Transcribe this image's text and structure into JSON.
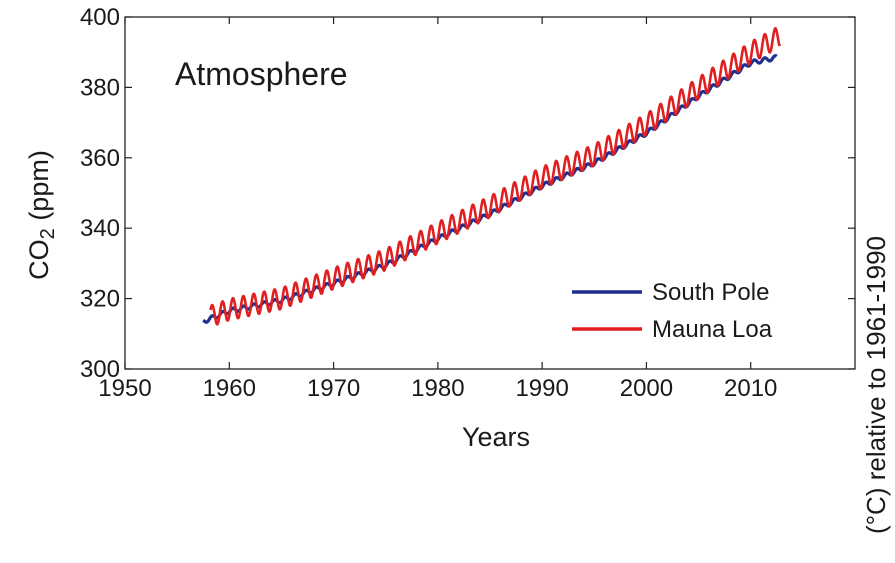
{
  "chart_data": {
    "type": "line",
    "panel_label": "Atmosphere",
    "xlabel": "Years",
    "ylabel_main": "CO",
    "ylabel_sub": "2",
    "ylabel_unit": " (ppm)",
    "xlim": [
      1950,
      2020
    ],
    "ylim": [
      300,
      400
    ],
    "x_ticks": [
      1950,
      1960,
      1970,
      1980,
      1990,
      2000,
      2010
    ],
    "y_ticks": [
      300,
      320,
      340,
      360,
      380,
      400
    ],
    "legend_position": "lower-right",
    "grid": false,
    "series": [
      {
        "name": "South Pole",
        "color": "#1f2f8f",
        "seasonal_amplitude": 0.6,
        "x": [
          1957.5,
          1960,
          1965,
          1970,
          1975,
          1980,
          1985,
          1990,
          1995,
          2000,
          2005,
          2010,
          2012.5
        ],
        "values": [
          313.5,
          316.5,
          319.5,
          324.3,
          329.5,
          337.0,
          344.0,
          352.0,
          358.5,
          367.0,
          377.5,
          387.0,
          388.5
        ]
      },
      {
        "name": "Mauna Loa",
        "color": "#e02020",
        "seasonal_amplitude": 3.0,
        "x": [
          1958.2,
          1960,
          1965,
          1970,
          1975,
          1980,
          1985,
          1990,
          1995,
          2000,
          2005,
          2010,
          2012.8
        ],
        "values": [
          315.0,
          316.9,
          320.0,
          325.7,
          331.1,
          338.7,
          346.1,
          354.4,
          360.8,
          369.5,
          379.8,
          389.9,
          394.5
        ]
      }
    ]
  },
  "side_label": "(°C) relative to 1961-1990"
}
